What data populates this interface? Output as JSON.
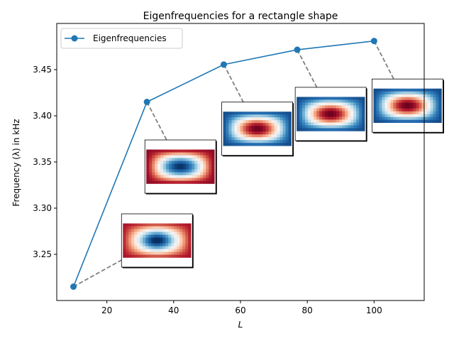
{
  "chart_data": {
    "type": "line",
    "title": "Eigenfrequencies for a rectangle shape",
    "xlabel": "L",
    "ylabel": "Frequency (λ) in kHz",
    "xlim": [
      5,
      115
    ],
    "ylim": [
      3.2,
      3.5
    ],
    "xticks": [
      20,
      40,
      60,
      80,
      100
    ],
    "yticks": [
      3.25,
      3.3,
      3.35,
      3.4,
      3.45
    ],
    "xtick_labels": [
      "20",
      "40",
      "60",
      "80",
      "100"
    ],
    "ytick_labels": [
      "3.25",
      "3.30",
      "3.35",
      "3.40",
      "3.45"
    ],
    "legend": {
      "location": "upper-left",
      "entries": [
        "Eigenfrequencies"
      ]
    },
    "series": [
      {
        "name": "Eigenfrequencies",
        "color": "#1f77b4",
        "x": [
          10,
          32,
          55,
          77,
          100
        ],
        "y": [
          3.215,
          3.415,
          3.4555,
          3.4715,
          3.481
        ]
      }
    ],
    "annotations": [
      {
        "point_index": 0,
        "inset_center": [
          35,
          3.265
        ],
        "mode": "2x1"
      },
      {
        "point_index": 1,
        "inset_center": [
          42,
          3.345
        ],
        "mode": "1x1"
      },
      {
        "point_index": 2,
        "inset_center": [
          65,
          3.386
        ],
        "mode": "1x1"
      },
      {
        "point_index": 3,
        "inset_center": [
          87,
          3.402
        ],
        "mode": "1x1"
      },
      {
        "point_index": 4,
        "inset_center": [
          110,
          3.411
        ],
        "mode": "1x1"
      }
    ],
    "connector_color": "#808080"
  }
}
